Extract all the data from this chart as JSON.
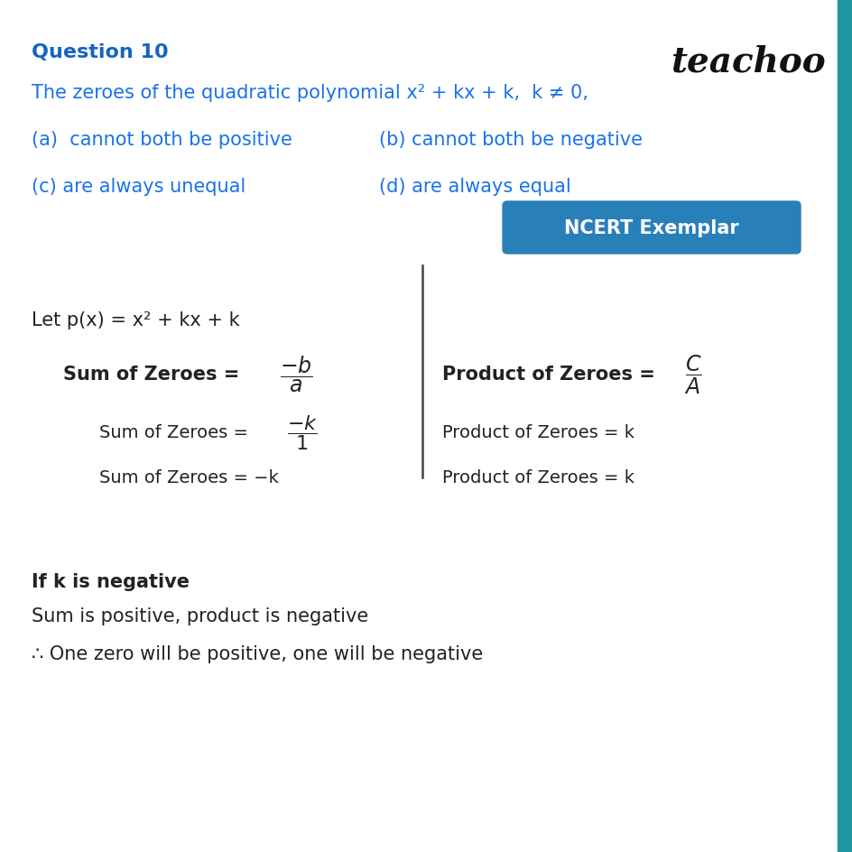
{
  "bg_color": "#ffffff",
  "right_bar_color": "#2196a0",
  "title_color": "#1565c0",
  "blue_text_color": "#1a73e8",
  "black_text_color": "#222222",
  "teachoo_color": "#111111",
  "ncert_bg": "#2980b9",
  "ncert_text": "#ffffff",
  "title": "Question 10",
  "teachoo": "teachoo",
  "question": "The zeroes of the quadratic polynomial x² + kx + k,  k ≠ 0,",
  "option_a": "(a)  cannot both be positive",
  "option_b": "(b) cannot both be negative",
  "option_c": "(c) are always unequal",
  "option_d": "(d) are always equal",
  "ncert_label": "NCERT Exemplar",
  "let_line": "Let p(x) = x² + kx + k",
  "sum_bold": "Sum of Zeroes =",
  "sum_frac1": "$\\dfrac{-b}{a}$",
  "sum_line2": "Sum of Zeroes =",
  "sum_frac2": "$\\dfrac{-k}{1}$",
  "sum_line3": "Sum of Zeroes = −k",
  "prod_bold": "Product of Zeroes =",
  "prod_frac": "$\\dfrac{C}{A}$",
  "prod_line2": "Product of Zeroes = k",
  "prod_line3": "Product of Zeroes = k",
  "if_k_neg": "If k is negative",
  "sum_pos_prod_neg": "Sum is positive, product is negative",
  "therefore_line": "∴ One zero will be positive, one will be negative"
}
